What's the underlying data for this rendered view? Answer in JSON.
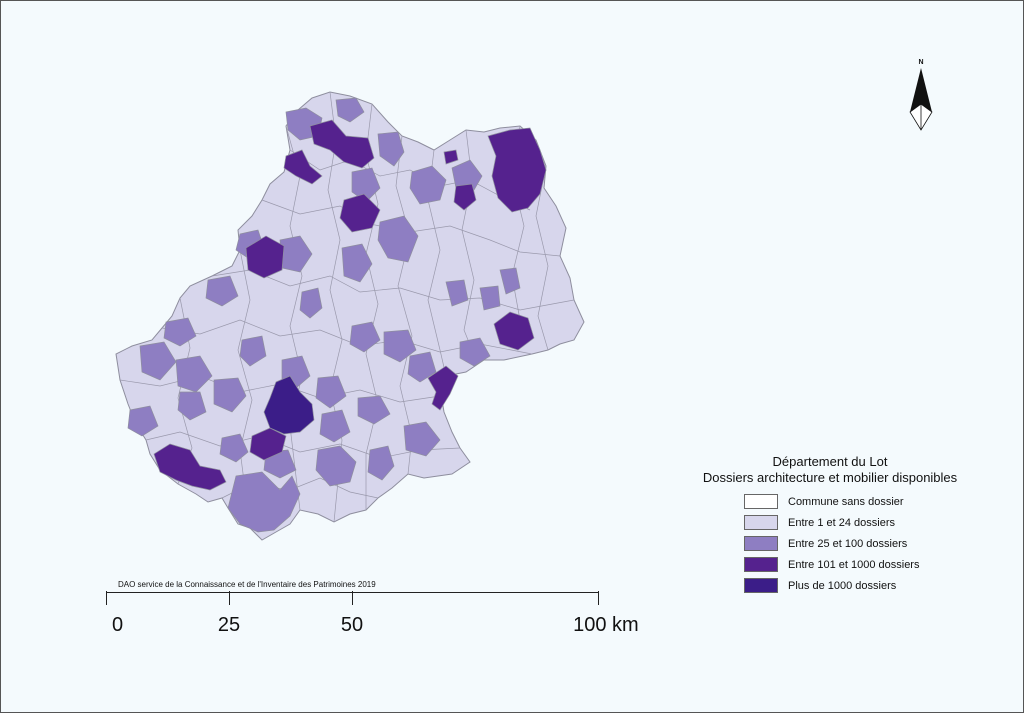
{
  "map": {
    "legend_title_line1": "Département du Lot",
    "legend_title_line2": "Dossiers architecture et mobilier disponibles",
    "legend": [
      {
        "label": "Commune sans dossier",
        "color": "#ffffff"
      },
      {
        "label": "Entre 1 et 24 dossiers",
        "color": "#d7d6ec"
      },
      {
        "label": "Entre 25 et 100 dossiers",
        "color": "#8e7ec2"
      },
      {
        "label": "Entre 101 et 1000 dossiers",
        "color": "#55228e"
      },
      {
        "label": "Plus de 1000 dossiers",
        "color": "#3b1d88"
      }
    ],
    "credit": "DAO service de la Connaissance et de l'Inventaire des Patrimoines 2019",
    "north_label": "N",
    "scale": {
      "labels": [
        "0",
        "25",
        "50",
        "100 km"
      ],
      "values_km": [
        0,
        25,
        50,
        100
      ]
    }
  }
}
